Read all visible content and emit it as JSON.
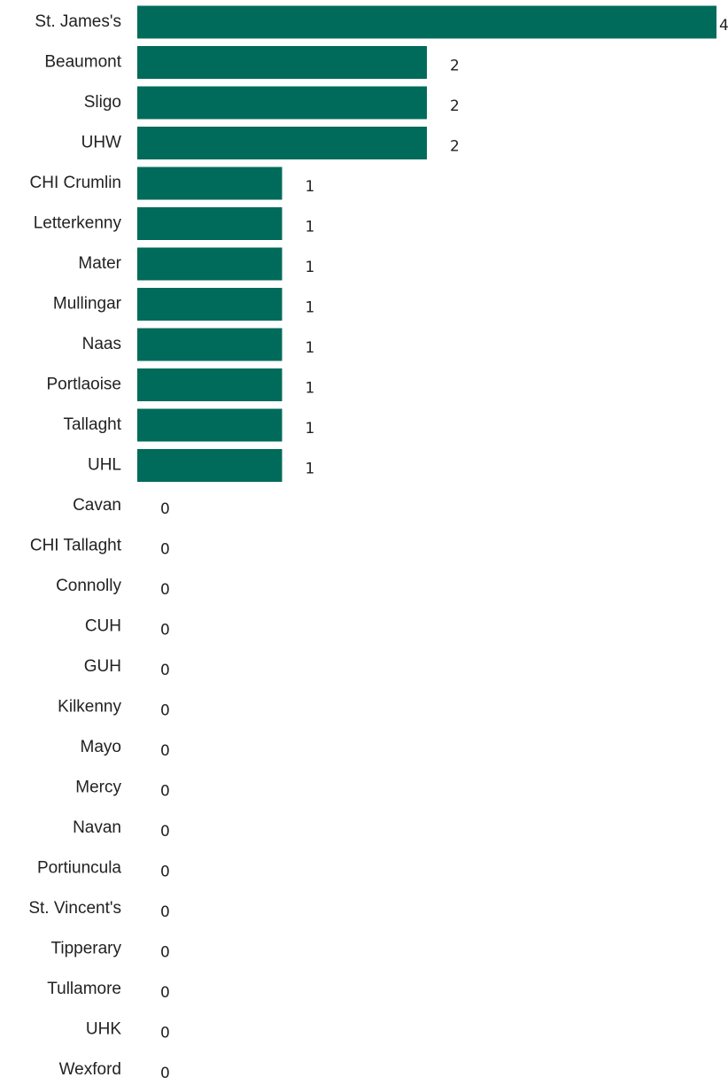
{
  "chart_data": {
    "type": "bar",
    "orientation": "horizontal",
    "color": "#006b5a",
    "categories": [
      "St. James's",
      "Beaumont",
      "Sligo",
      "UHW",
      "CHI Crumlin",
      "Letterkenny",
      "Mater",
      "Mullingar",
      "Naas",
      "Portlaoise",
      "Tallaght",
      "UHL",
      "Cavan",
      "CHI Tallaght",
      "Connolly",
      "CUH",
      "GUH",
      "Kilkenny",
      "Mayo",
      "Mercy",
      "Navan",
      "Portiuncula",
      "St. Vincent's",
      "Tipperary",
      "Tullamore",
      "UHK",
      "Wexford"
    ],
    "values": [
      4,
      2,
      2,
      2,
      1,
      1,
      1,
      1,
      1,
      1,
      1,
      1,
      0,
      0,
      0,
      0,
      0,
      0,
      0,
      0,
      0,
      0,
      0,
      0,
      0,
      0,
      0
    ]
  }
}
